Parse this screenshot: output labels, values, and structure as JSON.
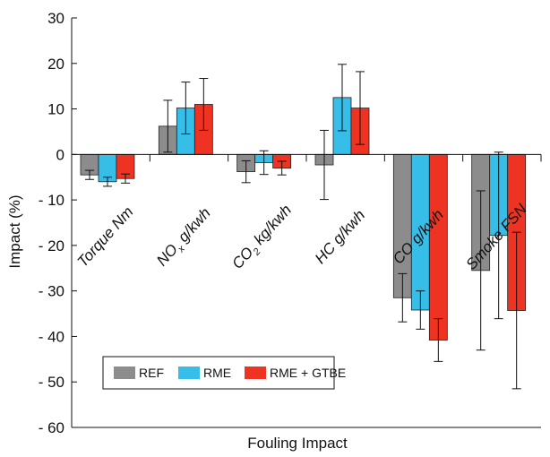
{
  "chart_data": {
    "type": "bar",
    "xlabel": "Fouling Impact",
    "ylabel": "Impact (%)",
    "ylim": [
      -60,
      30
    ],
    "yticks": [
      30,
      20,
      10,
      0,
      -10,
      -20,
      -30,
      -40,
      -50,
      -60
    ],
    "ytick_labels": [
      "30",
      "20",
      "10",
      "0",
      "- 10",
      "- 20",
      "- 30",
      "- 40",
      "- 50",
      "- 60"
    ],
    "grid": false,
    "legend_position": "bottom-left",
    "categories": [
      "Torque Nm",
      "NOx g/kwh",
      "CO2 kg/kwh",
      "HC g/kwh",
      "CO g/kwh",
      "Smoke FSN"
    ],
    "category_labels": [
      {
        "main": "Torque Nm"
      },
      {
        "pre": "NO",
        "sub": "x",
        "post": " g/kwh"
      },
      {
        "pre": "CO",
        "sub": "2",
        "post": " kg/kwh"
      },
      {
        "main": "HC g/kwh"
      },
      {
        "main": "CO g/kwh"
      },
      {
        "main": "Smoke FSN"
      }
    ],
    "series": [
      {
        "name": "REF",
        "color": "#8c8c8c",
        "values": [
          -4.5,
          6.2,
          -3.8,
          -2.3,
          -31.5,
          -25.5
        ],
        "errors": [
          1.0,
          5.7,
          2.4,
          7.6,
          5.3,
          17.5
        ]
      },
      {
        "name": "RME",
        "color": "#36bde8",
        "values": [
          -6.0,
          10.2,
          -1.8,
          12.5,
          -34.2,
          -17.8
        ],
        "errors": [
          1.0,
          5.7,
          2.6,
          7.3,
          4.2,
          18.3
        ]
      },
      {
        "name": "RME + GTBE",
        "color": "#ee3322",
        "values": [
          -5.3,
          11.0,
          -3.0,
          10.2,
          -40.8,
          -34.3
        ],
        "errors": [
          1.0,
          5.7,
          1.5,
          8.0,
          4.7,
          17.2
        ]
      }
    ]
  }
}
